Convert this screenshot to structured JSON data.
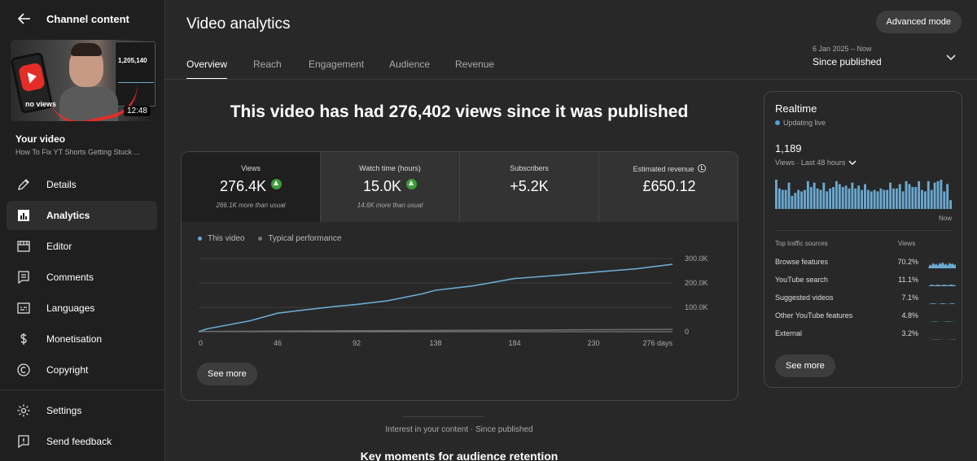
{
  "sidebar": {
    "title": "Channel content",
    "thumbnail": {
      "duration": "12:48",
      "overlay_text": "no views",
      "screen_number": "1,205,140"
    },
    "your_video_label": "Your video",
    "video_title": "How To Fix YT Shorts Getting Stuck ...",
    "items": [
      {
        "label": "Details",
        "icon": "pencil-icon"
      },
      {
        "label": "Analytics",
        "icon": "analytics-icon",
        "active": true
      },
      {
        "label": "Editor",
        "icon": "film-icon"
      },
      {
        "label": "Comments",
        "icon": "comment-icon"
      },
      {
        "label": "Languages",
        "icon": "subtitles-icon"
      },
      {
        "label": "Monetisation",
        "icon": "dollar-icon"
      },
      {
        "label": "Copyright",
        "icon": "copyright-icon"
      }
    ],
    "bottom_items": [
      {
        "label": "Settings",
        "icon": "gear-icon"
      },
      {
        "label": "Send feedback",
        "icon": "feedback-icon"
      }
    ]
  },
  "header": {
    "title": "Video analytics",
    "advanced_button": "Advanced mode",
    "tabs": [
      "Overview",
      "Reach",
      "Engagement",
      "Audience",
      "Revenue"
    ],
    "date_range": "6 Jan 2025 – Now",
    "date_label": "Since published"
  },
  "headline": "This video has had 276,402 views since it was published",
  "metrics": [
    {
      "label": "Views",
      "value": "276.4K",
      "trend": "up",
      "sub": "266.1K more than usual"
    },
    {
      "label": "Watch time (hours)",
      "value": "15.0K",
      "trend": "up",
      "sub": "14.6K more than usual"
    },
    {
      "label": "Subscribers",
      "value": "+5.2K"
    },
    {
      "label": "Estimated revenue",
      "value": "£650.12",
      "icon": "clock-icon"
    }
  ],
  "legend": {
    "this_video": "This video",
    "typical": "Typical performance"
  },
  "see_more_label": "See more",
  "chart_data": {
    "type": "line",
    "x_ticks": [
      "0",
      "46",
      "92",
      "138",
      "184",
      "230",
      "276 days"
    ],
    "y_ticks": [
      "0",
      "100.0K",
      "200.0K",
      "300.0K"
    ],
    "ylim": [
      0,
      300000
    ],
    "xlim": [
      0,
      276
    ],
    "grid": true,
    "series": [
      {
        "name": "This video",
        "color": "#6aa9d1",
        "x": [
          0,
          5,
          15,
          30,
          46,
          60,
          80,
          92,
          110,
          130,
          138,
          160,
          184,
          210,
          230,
          255,
          276
        ],
        "y": [
          0,
          12000,
          25000,
          45000,
          76000,
          88000,
          104000,
          112000,
          127000,
          155000,
          170000,
          188000,
          218000,
          232000,
          244000,
          258000,
          276402
        ]
      },
      {
        "name": "Typical performance",
        "color": "#6b6b6b",
        "x": [
          0,
          276
        ],
        "y": [
          1000,
          9500
        ]
      }
    ]
  },
  "footer": {
    "caption": "Interest in your content · Since published",
    "heading": "Key moments for audience retention"
  },
  "realtime": {
    "title": "Realtime",
    "status": "Updating live",
    "count": "1,189",
    "sub": "Views · Last 48 hours",
    "now_label": "Now",
    "bars": [
      40,
      28,
      26,
      26,
      36,
      18,
      22,
      26,
      24,
      26,
      38,
      30,
      36,
      28,
      26,
      36,
      24,
      28,
      30,
      38,
      34,
      30,
      32,
      28,
      36,
      28,
      32,
      26,
      34,
      26,
      24,
      26,
      24,
      28,
      26,
      26,
      36,
      28,
      28,
      34,
      24,
      38,
      34,
      30,
      30,
      38,
      26,
      24,
      38,
      26,
      36,
      38,
      40,
      24,
      34,
      12
    ],
    "sources_header": "Top traffic sources",
    "views_header": "Views",
    "sources": [
      {
        "name": "Browse features",
        "pct": "70.2%"
      },
      {
        "name": "YouTube search",
        "pct": "11.1%"
      },
      {
        "name": "Suggested videos",
        "pct": "7.1%"
      },
      {
        "name": "Other YouTube features",
        "pct": "4.8%"
      },
      {
        "name": "External",
        "pct": "3.2%"
      }
    ]
  }
}
